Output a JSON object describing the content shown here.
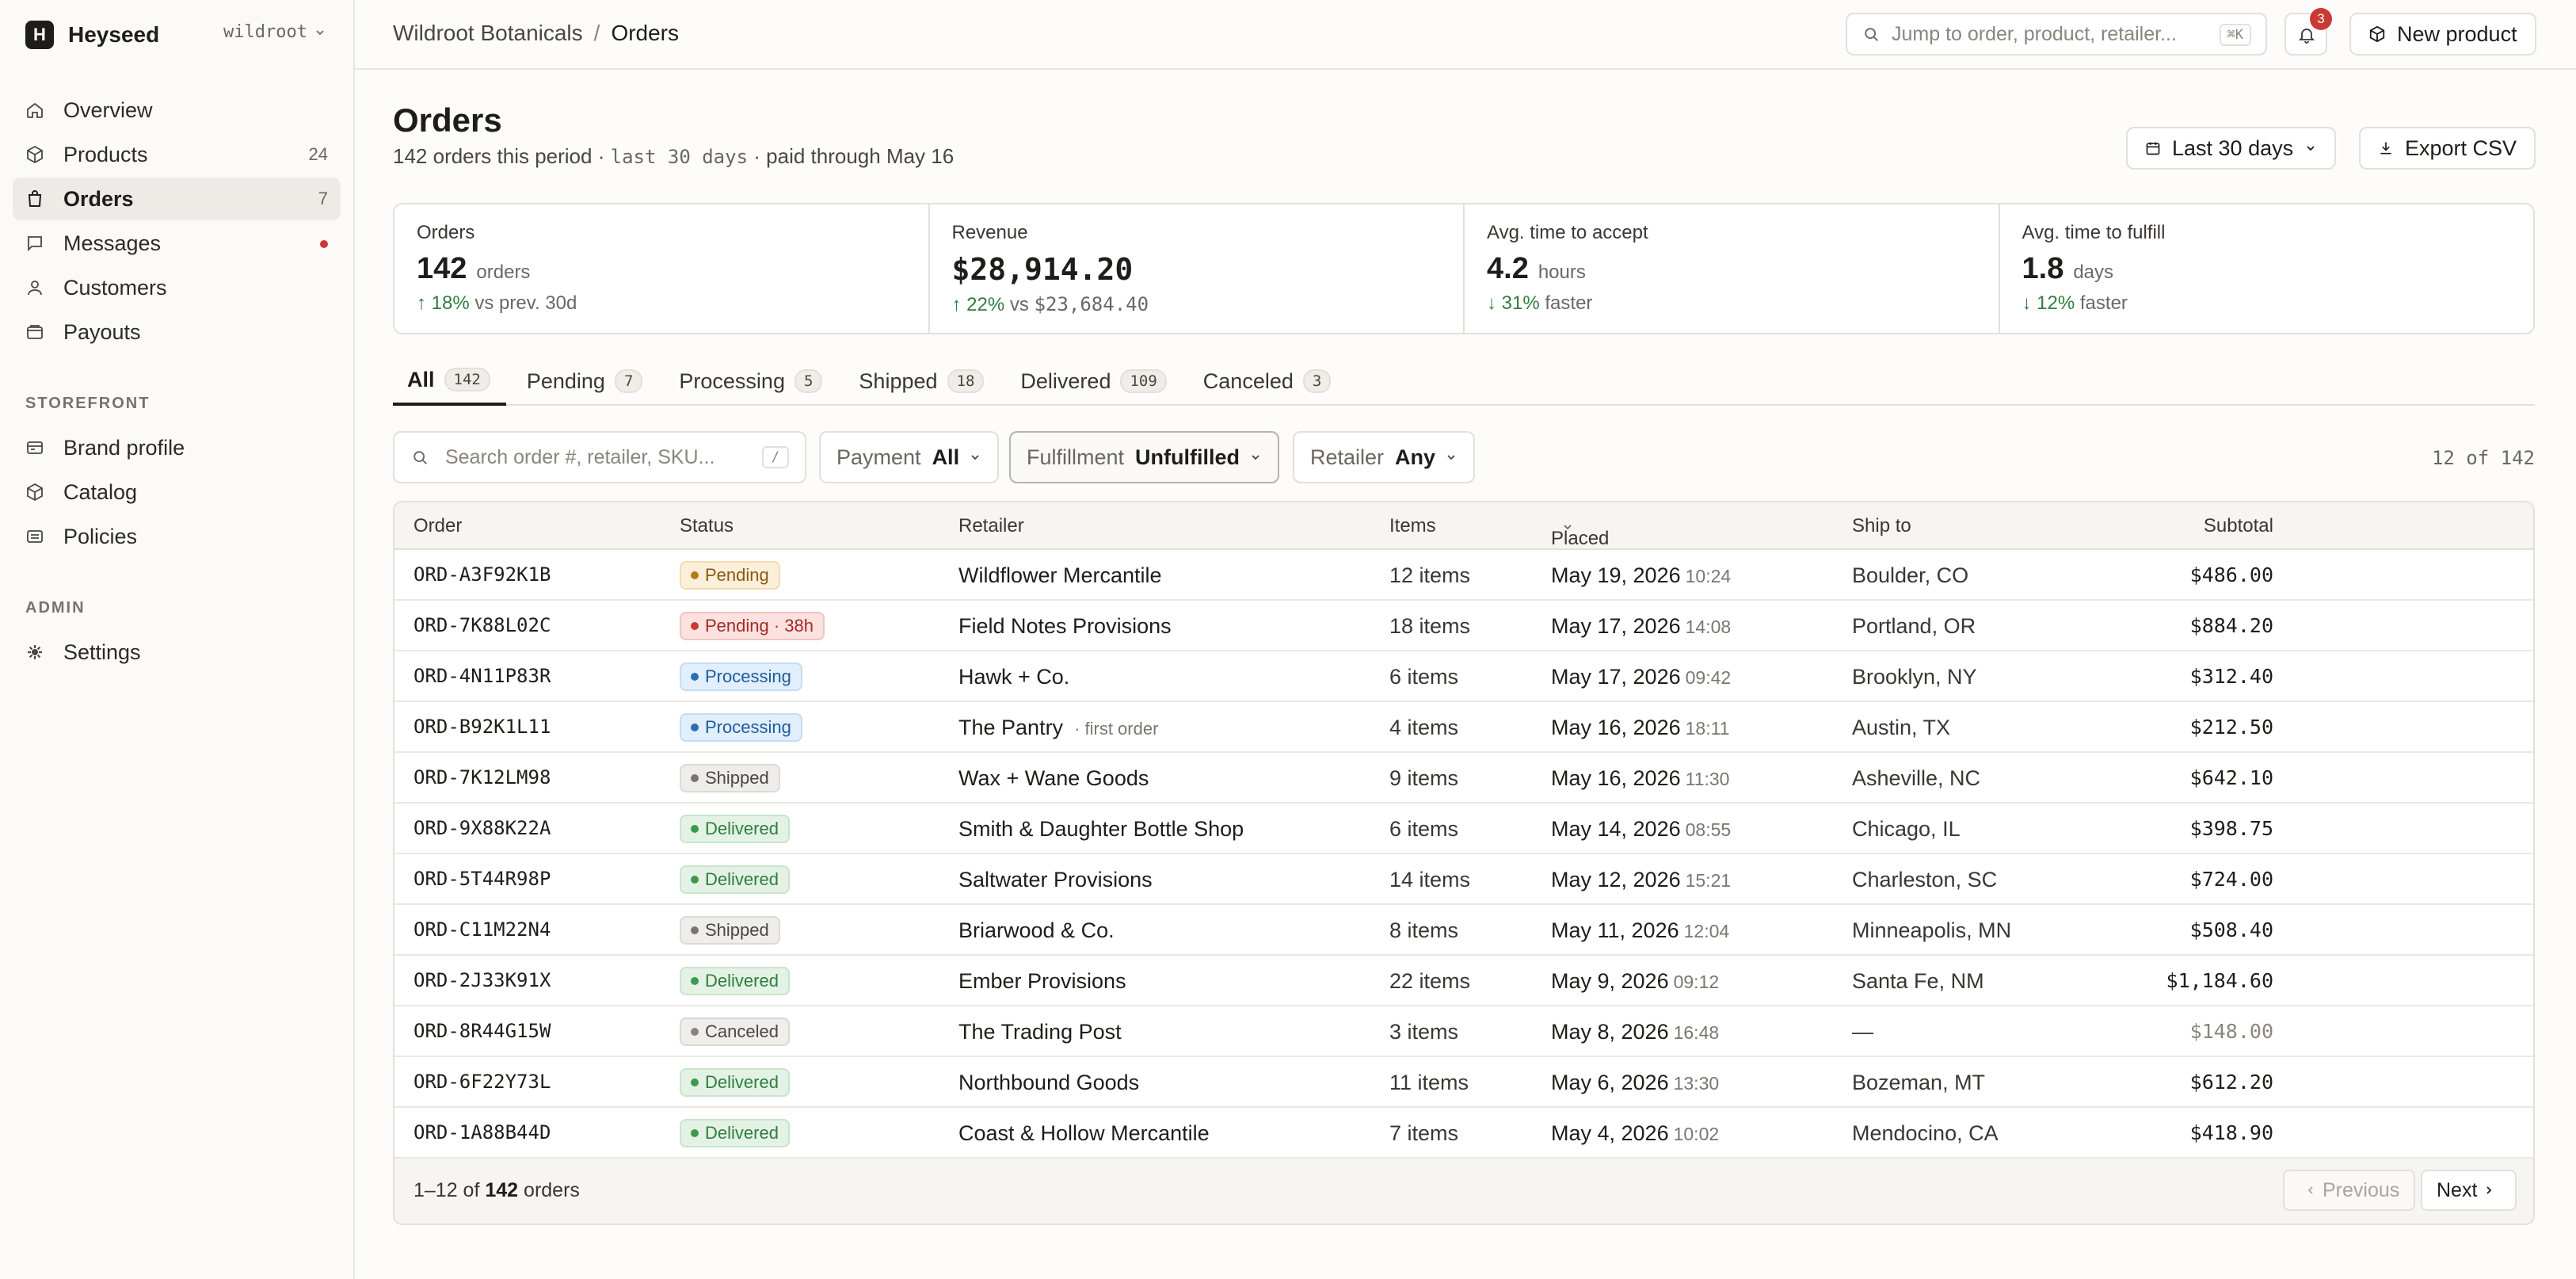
{
  "brand": {
    "logo_letter": "H",
    "name": "Heyseed",
    "workspace": "wildroot"
  },
  "sidebar": {
    "items": [
      {
        "label": "Overview",
        "icon": "home-icon"
      },
      {
        "label": "Products",
        "icon": "box-icon",
        "count": "24"
      },
      {
        "label": "Orders",
        "icon": "bag-icon",
        "count": "7",
        "active": true
      },
      {
        "label": "Messages",
        "icon": "message-icon",
        "unread_dot": true
      },
      {
        "label": "Customers",
        "icon": "user-icon"
      },
      {
        "label": "Payouts",
        "icon": "wallet-icon"
      }
    ],
    "storefront_label": "STOREFRONT",
    "storefront": [
      {
        "label": "Brand profile",
        "icon": "id-card-icon"
      },
      {
        "label": "Catalog",
        "icon": "box-icon"
      },
      {
        "label": "Policies",
        "icon": "document-icon"
      }
    ],
    "admin_label": "ADMIN",
    "admin": [
      {
        "label": "Settings",
        "icon": "gear-icon"
      }
    ]
  },
  "topbar": {
    "breadcrumb_parent": "Wildroot Botanicals",
    "breadcrumb_sep": "/",
    "breadcrumb_current": "Orders",
    "jump_placeholder": "Jump to order, product, retailer...",
    "jump_shortcut": "⌘K",
    "notification_count": "3",
    "new_product_label": "New product"
  },
  "page": {
    "title": "Orders",
    "subtitle_count": "142 orders this period",
    "subtitle_sep1": "·",
    "subtitle_range": "last 30 days",
    "subtitle_sep2": "·",
    "subtitle_paid": "paid through May 16",
    "range_button": "Last 30 days",
    "export_button": "Export CSV"
  },
  "stats": [
    {
      "label": "Orders",
      "value": "142",
      "unit": "orders",
      "delta": "18%",
      "delta_dir": "up",
      "delta_note": "vs prev. 30d"
    },
    {
      "label": "Revenue",
      "value": "$28,914.20",
      "unit": "",
      "delta": "22%",
      "delta_dir": "up",
      "delta_note_prefix": "vs",
      "delta_note": "$23,684.40"
    },
    {
      "label": "Avg. time to accept",
      "value": "4.2",
      "unit": "hours",
      "delta": "31%",
      "delta_dir": "down",
      "delta_note": "faster"
    },
    {
      "label": "Avg. time to fulfill",
      "value": "1.8",
      "unit": "days",
      "delta": "12%",
      "delta_dir": "down",
      "delta_note": "faster"
    }
  ],
  "tabs": [
    {
      "label": "All",
      "count": "142",
      "active": true
    },
    {
      "label": "Pending",
      "count": "7"
    },
    {
      "label": "Processing",
      "count": "5"
    },
    {
      "label": "Shipped",
      "count": "18"
    },
    {
      "label": "Delivered",
      "count": "109"
    },
    {
      "label": "Canceled",
      "count": "3"
    }
  ],
  "filters": {
    "search_placeholder": "Search order #, retailer, SKU...",
    "search_shortcut": "/",
    "payment_label": "Payment",
    "payment_value": "All",
    "fulfillment_label": "Fulfillment",
    "fulfillment_value": "Unfulfilled",
    "retailer_label": "Retailer",
    "retailer_value": "Any",
    "result_count": "12 of 142"
  },
  "table": {
    "columns": {
      "order": "Order",
      "status": "Status",
      "retailer": "Retailer",
      "items": "Items",
      "placed": "Placed",
      "ship_to": "Ship to",
      "subtotal": "Subtotal"
    },
    "rows": [
      {
        "order": "ORD-A3F92K1B",
        "status": "Pending",
        "status_kind": "pending",
        "retailer": "Wildflower Mercantile",
        "note": "",
        "items": "12 items",
        "date": "May 19, 2026",
        "time": "10:24",
        "ship_to": "Boulder, CO",
        "subtotal": "$486.00"
      },
      {
        "order": "ORD-7K88L02C",
        "status": "Pending · 38h",
        "status_kind": "late",
        "retailer": "Field Notes Provisions",
        "note": "",
        "items": "18 items",
        "date": "May 17, 2026",
        "time": "14:08",
        "ship_to": "Portland, OR",
        "subtotal": "$884.20"
      },
      {
        "order": "ORD-4N11P83R",
        "status": "Processing",
        "status_kind": "processing",
        "retailer": "Hawk + Co.",
        "note": "",
        "items": "6 items",
        "date": "May 17, 2026",
        "time": "09:42",
        "ship_to": "Brooklyn, NY",
        "subtotal": "$312.40"
      },
      {
        "order": "ORD-B92K1L11",
        "status": "Processing",
        "status_kind": "processing",
        "retailer": "The Pantry",
        "note": "· first order",
        "items": "4 items",
        "date": "May 16, 2026",
        "time": "18:11",
        "ship_to": "Austin, TX",
        "subtotal": "$212.50"
      },
      {
        "order": "ORD-7K12LM98",
        "status": "Shipped",
        "status_kind": "shipped",
        "retailer": "Wax + Wane Goods",
        "note": "",
        "items": "9 items",
        "date": "May 16, 2026",
        "time": "11:30",
        "ship_to": "Asheville, NC",
        "subtotal": "$642.10"
      },
      {
        "order": "ORD-9X88K22A",
        "status": "Delivered",
        "status_kind": "delivered",
        "retailer": "Smith & Daughter Bottle Shop",
        "note": "",
        "items": "6 items",
        "date": "May 14, 2026",
        "time": "08:55",
        "ship_to": "Chicago, IL",
        "subtotal": "$398.75"
      },
      {
        "order": "ORD-5T44R98P",
        "status": "Delivered",
        "status_kind": "delivered",
        "retailer": "Saltwater Provisions",
        "note": "",
        "items": "14 items",
        "date": "May 12, 2026",
        "time": "15:21",
        "ship_to": "Charleston, SC",
        "subtotal": "$724.00"
      },
      {
        "order": "ORD-C11M22N4",
        "status": "Shipped",
        "status_kind": "shipped",
        "retailer": "Briarwood & Co.",
        "note": "",
        "items": "8 items",
        "date": "May 11, 2026",
        "time": "12:04",
        "ship_to": "Minneapolis, MN",
        "subtotal": "$508.40"
      },
      {
        "order": "ORD-2J33K91X",
        "status": "Delivered",
        "status_kind": "delivered",
        "retailer": "Ember Provisions",
        "note": "",
        "items": "22 items",
        "date": "May 9, 2026",
        "time": "09:12",
        "ship_to": "Santa Fe, NM",
        "subtotal": "$1,184.60"
      },
      {
        "order": "ORD-8R44G15W",
        "status": "Canceled",
        "status_kind": "canceled",
        "retailer": "The Trading Post",
        "note": "",
        "items": "3 items",
        "date": "May 8, 2026",
        "time": "16:48",
        "ship_to": "—",
        "subtotal": "$148.00"
      },
      {
        "order": "ORD-6F22Y73L",
        "status": "Delivered",
        "status_kind": "delivered",
        "retailer": "Northbound Goods",
        "note": "",
        "items": "11 items",
        "date": "May 6, 2026",
        "time": "13:30",
        "ship_to": "Bozeman, MT",
        "subtotal": "$612.20"
      },
      {
        "order": "ORD-1A88B44D",
        "status": "Delivered",
        "status_kind": "delivered",
        "retailer": "Coast & Hollow Mercantile",
        "note": "",
        "items": "7 items",
        "date": "May 4, 2026",
        "time": "10:02",
        "ship_to": "Mendocino, CA",
        "subtotal": "$418.90"
      }
    ],
    "footer_range": "1–12 of",
    "footer_total": "142",
    "footer_suffix": "orders",
    "prev_label": "Previous",
    "next_label": "Next"
  }
}
